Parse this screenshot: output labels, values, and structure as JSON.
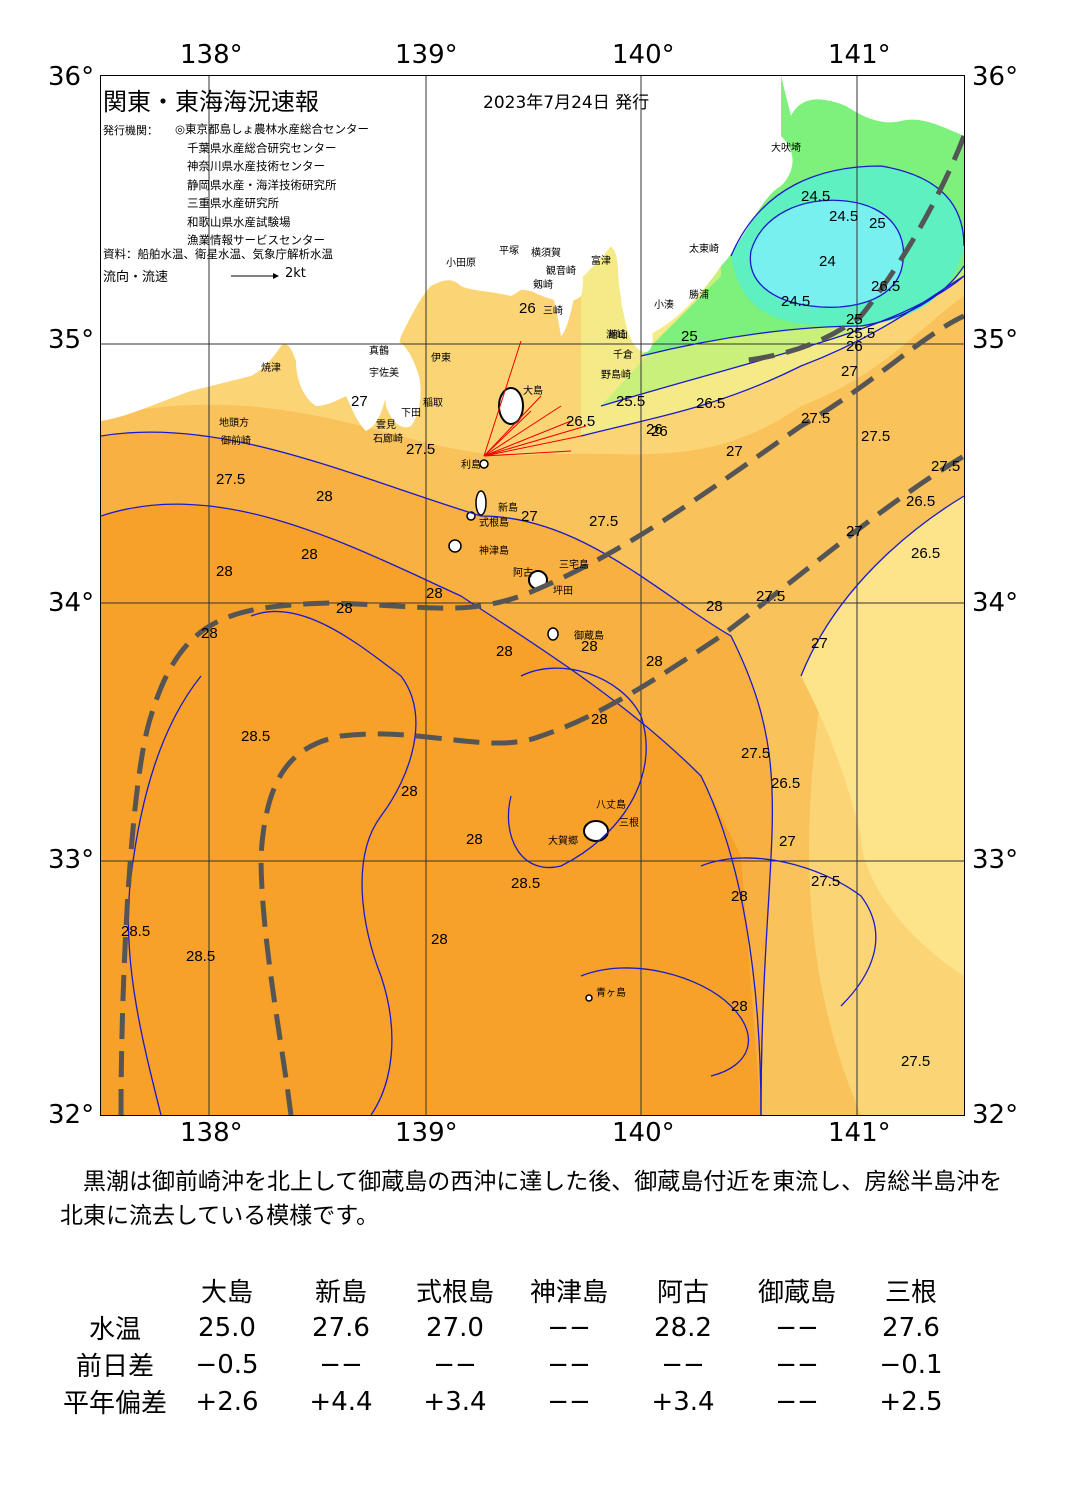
{
  "map": {
    "title": "関東・東海海況速報",
    "issue_date": "2023年7月24日 発行",
    "issuers_label": "発行機関：",
    "issuers": [
      "◎東京都島しょ農林水産総合センター",
      "千葉県水産総合研究センター",
      "神奈川県水産技術センター",
      "静岡県水産・海洋技術研究所",
      "三重県水産研究所",
      "和歌山県水産試験場",
      "漁業情報サービスセンター"
    ],
    "source": "資料：船舶水温、衛星水温、気象庁解析水温",
    "flow_legend_label": "流向・流速",
    "flow_legend_unit": "2kt",
    "lon_labels_top": [
      "138°",
      "139°",
      "140°",
      "141°"
    ],
    "lon_labels_bottom": [
      "138°",
      "139°",
      "140°",
      "141°"
    ],
    "lat_labels_left": [
      "36°",
      "35°",
      "34°",
      "33°",
      "32°"
    ],
    "lat_labels_right": [
      "36°",
      "35°",
      "34°",
      "33°",
      "32°"
    ],
    "contour_labels": [
      "24.5",
      "24.5",
      "25",
      "24",
      "24.5",
      "25",
      "25.5",
      "26",
      "26.5",
      "27",
      "25",
      "25.5",
      "26.5",
      "26",
      "26",
      "26.5",
      "27",
      "27.5",
      "27.5",
      "27.5",
      "27.5",
      "27",
      "26.5",
      "27",
      "27.5",
      "28",
      "28",
      "28",
      "28",
      "28",
      "28",
      "28",
      "28.5",
      "28.5",
      "28",
      "28",
      "27.5",
      "26.5",
      "28",
      "28",
      "28.5",
      "28.5",
      "28",
      "28",
      "27",
      "27.5",
      "28",
      "28",
      "27.5",
      "26",
      "27",
      "27",
      "26.5",
      "27.5",
      "27.5",
      "28"
    ],
    "place_labels": [
      "大吠埼",
      "太東崎",
      "勝浦",
      "小湊",
      "洲崎",
      "千倉",
      "野島崎",
      "平塚",
      "横須賀",
      "富津",
      "観音崎",
      "剱崎",
      "三崎",
      "館山",
      "小田原",
      "真鶴",
      "伊東",
      "稲取",
      "下田",
      "石廊崎",
      "雲見",
      "大島",
      "利島",
      "新島",
      "式根島",
      "神津島",
      "阿古",
      "三宅島",
      "坪田",
      "御蔵島",
      "八丈島",
      "三根",
      "大賀郷",
      "青ヶ島",
      "焼津",
      "御前崎",
      "地頭方",
      "宇佐美"
    ],
    "colors": {
      "sea_warm": "#f7a12a",
      "sea_28": "#f8b040",
      "sea_27_5": "#f9c25a",
      "sea_27": "#fbd575",
      "sea_26_5": "#fde48a",
      "sea_26": "#f4eb88",
      "sea_25_5": "#c8f07a",
      "sea_25": "#7ef07c",
      "sea_24_5": "#5ef0c0",
      "sea_24": "#78f0f0",
      "land": "#ffffff",
      "contour": "#1a1acc",
      "kuroshio": "#555555",
      "current_arrow": "#ee0000"
    }
  },
  "description": "　黒潮は御前崎沖を北上して御蔵島の西沖に達した後、御蔵島付近を東流し、房総半島沖を北東に流去している模様です。",
  "table": {
    "headers": [
      "",
      "大島",
      "新島",
      "式根島",
      "神津島",
      "阿古",
      "御蔵島",
      "三根"
    ],
    "rows": [
      {
        "label": "水温",
        "values": [
          "25.0",
          "27.6",
          "27.0",
          "−−",
          "28.2",
          "−−",
          "27.6"
        ]
      },
      {
        "label": "前日差",
        "values": [
          "−0.5",
          "−−",
          "−−",
          "−−",
          "−−",
          "−−",
          "−0.1"
        ]
      },
      {
        "label": "平年偏差",
        "values": [
          "+2.6",
          "+4.4",
          "+3.4",
          "−−",
          "+3.4",
          "−−",
          "+2.5"
        ]
      }
    ]
  }
}
